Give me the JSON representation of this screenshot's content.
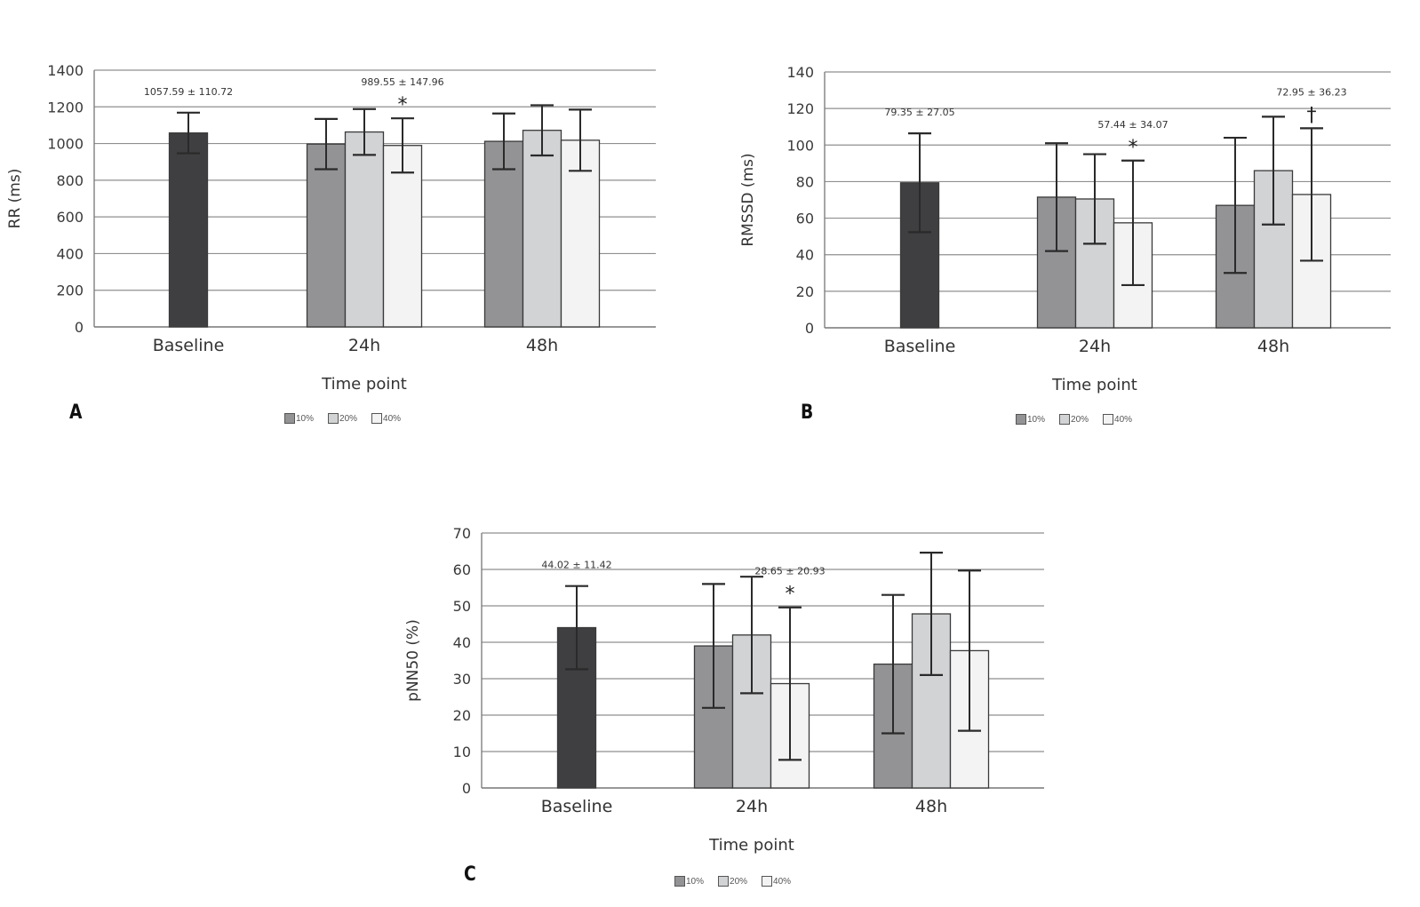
{
  "figure": {
    "panels": [
      "A",
      "B",
      "C"
    ]
  },
  "legend": {
    "items": [
      {
        "label": "10%",
        "color": "#939396"
      },
      {
        "label": "20%",
        "color": "#d2d3d5"
      },
      {
        "label": "40%",
        "color": "#f3f3f3"
      }
    ],
    "baseline_color": "#3f3f41"
  },
  "chart_data": [
    {
      "panel": "A",
      "type": "bar",
      "title": "",
      "xlabel": "Time point",
      "ylabel": "RR (ms)",
      "ylim": [
        0,
        1400
      ],
      "yticks": [
        0,
        200,
        400,
        600,
        800,
        1000,
        1200,
        1400
      ],
      "categories": [
        "Baseline",
        "24h",
        "48h"
      ],
      "grid": true,
      "legend_position": "bottom",
      "baseline": {
        "value": 1057.59,
        "error": 110.72
      },
      "series": [
        {
          "name": "10%",
          "values": [
            null,
            997,
            1012
          ],
          "errors": [
            null,
            137,
            152
          ]
        },
        {
          "name": "20%",
          "values": [
            null,
            1063,
            1072
          ],
          "errors": [
            null,
            125,
            137
          ]
        },
        {
          "name": "40%",
          "values": [
            null,
            989.55,
            1018
          ],
          "errors": [
            null,
            147.96,
            167
          ]
        }
      ],
      "annotations": [
        {
          "text": "1057.59 ± 110.72",
          "target": "Baseline",
          "marker": ""
        },
        {
          "text": "989.55 ± 147.96",
          "target": "24h-40%",
          "marker": "*"
        }
      ]
    },
    {
      "panel": "B",
      "type": "bar",
      "title": "",
      "xlabel": "Time point",
      "ylabel": "RMSSD (ms)",
      "ylim": [
        0,
        140
      ],
      "yticks": [
        0,
        20,
        40,
        60,
        80,
        100,
        120,
        140
      ],
      "categories": [
        "Baseline",
        "24h",
        "48h"
      ],
      "grid": true,
      "legend_position": "bottom",
      "baseline": {
        "value": 79.35,
        "error": 27.05
      },
      "series": [
        {
          "name": "10%",
          "values": [
            null,
            71.5,
            67
          ],
          "errors": [
            null,
            29.5,
            37
          ]
        },
        {
          "name": "20%",
          "values": [
            null,
            70.5,
            86
          ],
          "errors": [
            null,
            24.5,
            29.5
          ]
        },
        {
          "name": "40%",
          "values": [
            null,
            57.44,
            72.95
          ],
          "errors": [
            null,
            34.07,
            36.23
          ]
        }
      ],
      "annotations": [
        {
          "text": "79.35 ± 27.05",
          "target": "Baseline",
          "marker": ""
        },
        {
          "text": "57.44 ± 34.07",
          "target": "24h-40%",
          "marker": "*"
        },
        {
          "text": "72.95 ± 36.23",
          "target": "48h-40%",
          "marker": "†"
        }
      ]
    },
    {
      "panel": "C",
      "type": "bar",
      "title": "",
      "xlabel": "Time point",
      "ylabel": "pNN50 (%)",
      "ylim": [
        0,
        70
      ],
      "yticks": [
        0,
        10,
        20,
        30,
        40,
        50,
        60,
        70
      ],
      "categories": [
        "Baseline",
        "24h",
        "48h"
      ],
      "grid": true,
      "legend_position": "bottom",
      "baseline": {
        "value": 44.02,
        "error": 11.42
      },
      "series": [
        {
          "name": "10%",
          "values": [
            null,
            39,
            34
          ],
          "errors": [
            null,
            17,
            19
          ]
        },
        {
          "name": "20%",
          "values": [
            null,
            42,
            47.8
          ],
          "errors": [
            null,
            16,
            16.8
          ]
        },
        {
          "name": "40%",
          "values": [
            null,
            28.65,
            37.7
          ],
          "errors": [
            null,
            20.93,
            22
          ]
        }
      ],
      "annotations": [
        {
          "text": "44.02 ± 11.42",
          "target": "Baseline",
          "marker": ""
        },
        {
          "text": "28.65 ± 20.93",
          "target": "24h-40%",
          "marker": "*"
        }
      ]
    }
  ]
}
